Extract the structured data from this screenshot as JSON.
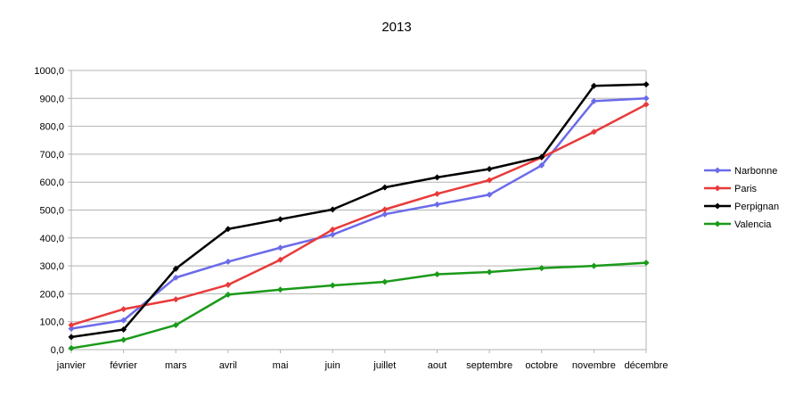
{
  "chart_data": {
    "type": "line",
    "title": "2013",
    "xlabel": "",
    "ylabel": "",
    "categories": [
      "janvier",
      "février",
      "mars",
      "avril",
      "mai",
      "juin",
      "juillet",
      "aout",
      "septembre",
      "octobre",
      "novembre",
      "décembre"
    ],
    "ylim": [
      0,
      1000
    ],
    "yticks": [
      0,
      100,
      200,
      300,
      400,
      500,
      600,
      700,
      800,
      900,
      1000
    ],
    "ytick_labels": [
      "0,0",
      "100,0",
      "200,0",
      "300,0",
      "400,0",
      "500,0",
      "600,0",
      "700,0",
      "800,0",
      "900,0",
      "1000,0"
    ],
    "grid": true,
    "legend_position": "right",
    "series": [
      {
        "name": "Narbonne",
        "color": "#6b6bea",
        "values": [
          75,
          105,
          258,
          315,
          365,
          412,
          485,
          520,
          555,
          660,
          890,
          900
        ]
      },
      {
        "name": "Paris",
        "color": "#e83a3a",
        "values": [
          88,
          145,
          180,
          232,
          322,
          430,
          502,
          558,
          607,
          688,
          780,
          878
        ]
      },
      {
        "name": "Perpignan",
        "color": "#000000",
        "values": [
          45,
          72,
          290,
          432,
          467,
          502,
          581,
          617,
          647,
          690,
          945,
          950
        ]
      },
      {
        "name": "Valencia",
        "color": "#1a9a1a",
        "values": [
          5,
          35,
          88,
          197,
          215,
          230,
          243,
          270,
          278,
          292,
          300,
          311
        ]
      }
    ]
  }
}
